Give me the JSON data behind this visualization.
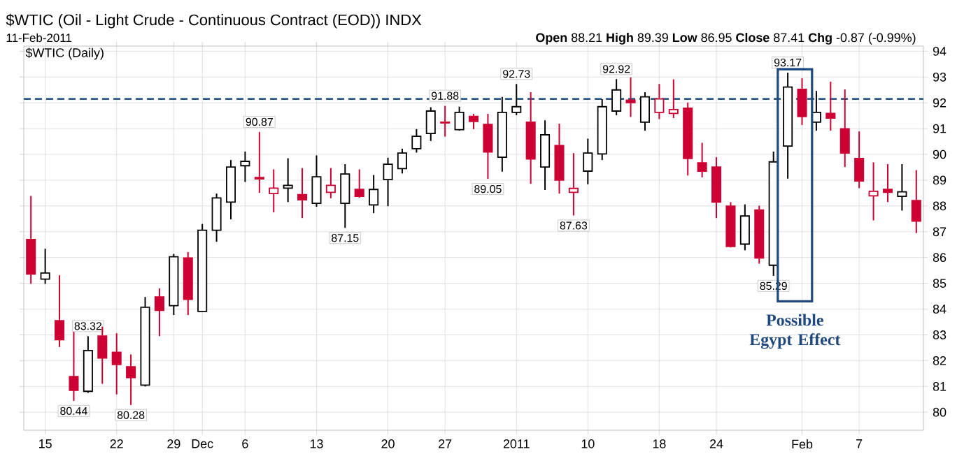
{
  "chart_data": {
    "type": "candlestick",
    "title": "$WTIC (Oil - Light Crude - Continuous Contract (EOD)) INDX",
    "subtitle": "11-Feb-2011",
    "annotations": [
      "**Open** 88.21 **High** 89.39 **Low** 86.95 **Close** 87.41 **Chg** -0.87 (-0.99%)",
      "$WTIC (Daily)",
      "Possible Egypt Effect"
    ],
    "categories": [
      null,
      "15",
      null,
      null,
      null,
      null,
      "22",
      null,
      null,
      null,
      "29",
      null,
      "Dec",
      null,
      null,
      "6",
      null,
      null,
      null,
      null,
      "13",
      null,
      null,
      null,
      null,
      "20",
      null,
      null,
      null,
      "27",
      null,
      null,
      null,
      null,
      "2011",
      null,
      null,
      null,
      null,
      "10",
      null,
      null,
      null,
      null,
      "18",
      null,
      null,
      null,
      "24",
      null,
      null,
      null,
      null,
      null,
      "Feb",
      null,
      null,
      null,
      "7",
      null,
      null,
      null,
      null
    ],
    "ohlc": [
      [
        86.7,
        88.39,
        84.98,
        85.36
      ],
      [
        85.16,
        86.34,
        84.98,
        85.4
      ],
      [
        83.55,
        85.31,
        82.53,
        82.81
      ],
      [
        81.38,
        83.24,
        80.44,
        80.85
      ],
      [
        80.81,
        82.95,
        80.75,
        82.39
      ],
      [
        82.95,
        83.32,
        81.1,
        82.1
      ],
      [
        82.32,
        83.06,
        80.69,
        81.85
      ],
      [
        81.76,
        82.24,
        80.28,
        81.34
      ],
      [
        81.05,
        84.47,
        81.0,
        84.07
      ],
      [
        84.47,
        84.8,
        82.95,
        83.95
      ],
      [
        84.13,
        86.14,
        83.77,
        86.03
      ],
      [
        85.98,
        86.21,
        83.77,
        84.38
      ],
      [
        83.91,
        87.3,
        83.9,
        87.06
      ],
      [
        87.06,
        88.48,
        86.61,
        88.31
      ],
      [
        88.15,
        89.78,
        87.48,
        89.51
      ],
      [
        89.56,
        90.11,
        88.93,
        89.73
      ],
      [
        89.1,
        90.87,
        88.51,
        89.05
      ],
      [
        88.48,
        89.42,
        87.75,
        88.69
      ],
      [
        88.69,
        89.85,
        88.15,
        88.8
      ],
      [
        88.44,
        89.47,
        87.53,
        88.24
      ],
      [
        88.1,
        89.96,
        87.97,
        89.13
      ],
      [
        88.53,
        89.47,
        88.3,
        88.8
      ],
      [
        88.1,
        89.62,
        87.15,
        89.24
      ],
      [
        88.64,
        89.42,
        88.32,
        88.37
      ],
      [
        88.04,
        89.2,
        87.72,
        88.64
      ],
      [
        89.02,
        89.87,
        87.99,
        89.62
      ],
      [
        89.45,
        90.22,
        89.26,
        90.05
      ],
      [
        90.22,
        90.98,
        90.07,
        90.7
      ],
      [
        90.81,
        91.83,
        90.52,
        91.68
      ],
      [
        91.25,
        91.88,
        90.69,
        91.22
      ],
      [
        90.96,
        91.85,
        90.92,
        91.63
      ],
      [
        91.47,
        91.57,
        90.98,
        91.28
      ],
      [
        91.16,
        91.57,
        89.05,
        90.09
      ],
      [
        89.89,
        92.23,
        89.33,
        91.63
      ],
      [
        91.63,
        92.73,
        91.52,
        91.85
      ],
      [
        91.25,
        92.41,
        88.86,
        89.82
      ],
      [
        89.51,
        91.32,
        88.62,
        90.76
      ],
      [
        90.34,
        91.19,
        88.48,
        89.0
      ],
      [
        88.53,
        90.05,
        87.63,
        88.68
      ],
      [
        89.35,
        90.61,
        88.84,
        90.05
      ],
      [
        90.02,
        92.14,
        89.78,
        91.85
      ],
      [
        91.68,
        92.92,
        91.52,
        92.5
      ],
      [
        92.1,
        92.99,
        91.45,
        92.01
      ],
      [
        91.25,
        92.41,
        90.92,
        92.23
      ],
      [
        91.63,
        92.73,
        91.37,
        92.15
      ],
      [
        91.59,
        92.91,
        91.41,
        91.74
      ],
      [
        91.79,
        92.01,
        89.18,
        89.84
      ],
      [
        89.67,
        90.45,
        89.11,
        89.35
      ],
      [
        89.51,
        89.89,
        87.53,
        88.15
      ],
      [
        87.99,
        88.15,
        86.39,
        86.43
      ],
      [
        86.52,
        88.06,
        86.28,
        87.61
      ],
      [
        87.84,
        88.01,
        85.76,
        85.98
      ],
      [
        85.7,
        90.11,
        85.29,
        89.71
      ],
      [
        90.32,
        93.17,
        89.06,
        92.61
      ],
      [
        92.52,
        92.95,
        91.14,
        91.47
      ],
      [
        91.25,
        92.46,
        90.92,
        91.63
      ],
      [
        91.59,
        92.82,
        90.92,
        91.41
      ],
      [
        90.99,
        92.52,
        89.51,
        90.05
      ],
      [
        89.84,
        90.89,
        88.69,
        88.97
      ],
      [
        88.39,
        89.69,
        87.44,
        88.57
      ],
      [
        88.64,
        89.62,
        88.15,
        88.53
      ],
      [
        88.37,
        89.62,
        87.82,
        88.55
      ],
      [
        88.21,
        89.39,
        86.95,
        87.41
      ]
    ],
    "colors": [
      "#cc0033",
      "#000000",
      "#cc0033",
      "#cc0033",
      "#000000",
      "#cc0033",
      "#cc0033",
      "#cc0033",
      "#000000",
      "#cc0033",
      "#000000",
      "#cc0033",
      "#000000",
      "#000000",
      "#000000",
      "#000000",
      "#cc0033",
      "#cc0033",
      "#000000",
      "#cc0033",
      "#000000",
      "#cc0033",
      "#000000",
      "#cc0033",
      "#000000",
      "#000000",
      "#000000",
      "#000000",
      "#000000",
      "#cc0033",
      "#000000",
      "#cc0033",
      "#cc0033",
      "#000000",
      "#000000",
      "#cc0033",
      "#000000",
      "#cc0033",
      "#cc0033",
      "#000000",
      "#000000",
      "#000000",
      "#cc0033",
      "#000000",
      "#cc0033",
      "#cc0033",
      "#cc0033",
      "#cc0033",
      "#cc0033",
      "#cc0033",
      "#000000",
      "#cc0033",
      "#000000",
      "#000000",
      "#cc0033",
      "#000000",
      "#cc0033",
      "#cc0033",
      "#cc0033",
      "#cc0033",
      "#cc0033",
      "#000000",
      "#cc0033"
    ],
    "value_labels": [
      null,
      null,
      null,
      "80.44",
      "83.32",
      null,
      null,
      "80.28",
      null,
      null,
      null,
      null,
      null,
      null,
      null,
      null,
      "90.87",
      null,
      null,
      null,
      null,
      null,
      "87.15",
      null,
      null,
      null,
      null,
      null,
      null,
      "91.88",
      null,
      null,
      "89.05",
      null,
      "92.73",
      null,
      null,
      null,
      "87.63",
      null,
      null,
      "92.92",
      null,
      null,
      null,
      null,
      null,
      null,
      null,
      null,
      null,
      null,
      "85.29",
      "93.17",
      null,
      null,
      null,
      null,
      null,
      null,
      null,
      null,
      null
    ],
    "ylim": [
      79.3,
      94.2
    ],
    "yticks": [
      80,
      81,
      82,
      83,
      84,
      85,
      86,
      87,
      88,
      89,
      90,
      91,
      92,
      93,
      94
    ],
    "grid": true,
    "ref_lines": [
      {
        "axis": "y",
        "value": 92.15,
        "color": "#2e5c8a",
        "line_style": "dashed"
      }
    ]
  }
}
